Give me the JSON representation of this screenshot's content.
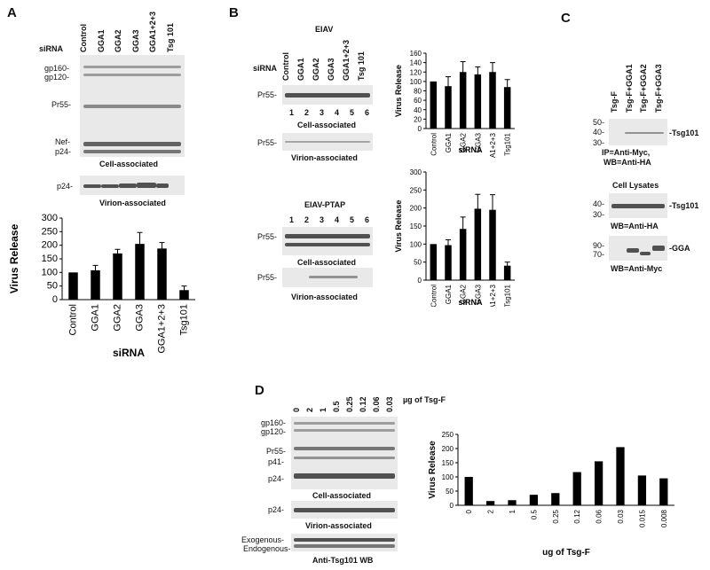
{
  "panels": {
    "A": {
      "label": "A",
      "sirna_label": "siRNA",
      "lanes": [
        "Control",
        "GGA1",
        "GGA2",
        "GGA3",
        "GGA1+2+3",
        "Tsg 101"
      ],
      "markers": [
        "gp160-",
        "gp120-",
        "Pr55-",
        "Nef-",
        "p24-"
      ],
      "virion_marker": "p24-",
      "cell_caption": "Cell-associated",
      "virion_caption": "Virion-associated"
    },
    "B": {
      "label": "B",
      "title_top": "EIAV",
      "title_bottom": "EIAV-PTAP",
      "sirna_label": "siRNA",
      "lanes": [
        "Control",
        "GGA1",
        "GGA2",
        "GGA3",
        "GGA1+2+3",
        "Tsg 101"
      ],
      "lane_numbers": [
        "1",
        "2",
        "3",
        "4",
        "5",
        "6"
      ],
      "marker": "Pr55-",
      "cell_caption": "Cell-associated",
      "virion_caption": "Virion-associated"
    },
    "C": {
      "label": "C",
      "lanes": [
        "Tsg-F",
        "Tsg-F+GGA1",
        "Tsg-F+GGA2",
        "Tsg-F+GGA3"
      ],
      "mw_ip": [
        "50-",
        "40-",
        "30-"
      ],
      "ip_band": "-Tsg101",
      "ip_caption_1": "IP=Anti-Myc,",
      "ip_caption_2": "WB=Anti-HA",
      "lysate_title": "Cell Lysates",
      "mw_lys1": [
        "40-",
        "30-"
      ],
      "lys1_band": "-Tsg101",
      "lys1_caption": "WB=Anti-HA",
      "mw_lys2": [
        "90-",
        "70-"
      ],
      "lys2_band": "-GGA",
      "lys2_caption": "WB=Anti-Myc"
    },
    "D": {
      "label": "D",
      "unit_label": "µg of Tsg-F",
      "lanes": [
        "0",
        "2",
        "1",
        "0.5",
        "0.25",
        "0.12",
        "0.06",
        "0.03"
      ],
      "markers": [
        "gp160-",
        "gp120-",
        "Pr55-",
        "p41-",
        "p24-"
      ],
      "virion_marker": "p24-",
      "cell_caption": "Cell-associated",
      "virion_caption": "Virion-associated",
      "wb_markers": [
        "Exogenous-",
        "Endogenous-"
      ],
      "wb_caption": "Anti-Tsg101 WB"
    }
  },
  "chart_data": [
    {
      "type": "bar",
      "panel": "A",
      "categories": [
        "Control",
        "GGA1",
        "GGA2",
        "GGA3",
        "GGA1+2+3",
        "Tsg101"
      ],
      "values": [
        100,
        108,
        170,
        205,
        188,
        35
      ],
      "errors": [
        0,
        18,
        15,
        42,
        22,
        15
      ],
      "ylabel": "Virus Release",
      "xlabel": "siRNA",
      "ylim": [
        0,
        300
      ],
      "yticks": [
        0,
        50,
        100,
        150,
        200,
        250,
        300
      ]
    },
    {
      "type": "bar",
      "panel": "B-EIAV",
      "categories": [
        "Control",
        "GGA1",
        "GGA2",
        "GGA3",
        "GGA1+2+3",
        "Tsg101"
      ],
      "values": [
        100,
        90,
        120,
        115,
        120,
        88
      ],
      "errors": [
        0,
        20,
        22,
        16,
        20,
        16
      ],
      "ylabel": "Virus Release",
      "xlabel": "siRNA",
      "ylim": [
        0,
        160
      ],
      "yticks": [
        0,
        20,
        40,
        60,
        80,
        100,
        120,
        140,
        160
      ]
    },
    {
      "type": "bar",
      "panel": "B-EIAV-PTAP",
      "categories": [
        "Control",
        "GGA1",
        "GGA2",
        "GGA3",
        "GGA1+2+3",
        "Tsg101"
      ],
      "values": [
        100,
        97,
        142,
        198,
        195,
        40
      ],
      "errors": [
        0,
        15,
        33,
        40,
        42,
        10
      ],
      "ylabel": "Virus Release",
      "xlabel": "siRNA",
      "ylim": [
        0,
        300
      ],
      "yticks": [
        0,
        50,
        100,
        150,
        200,
        250,
        300
      ]
    },
    {
      "type": "bar",
      "panel": "D",
      "categories": [
        "0",
        "2",
        "1",
        "0.5",
        "0.25",
        "0.12",
        "0.06",
        "0.03",
        "0.015",
        "0.008"
      ],
      "values": [
        100,
        15,
        18,
        37,
        43,
        117,
        155,
        205,
        105,
        95
      ],
      "ylabel": "Virus Release",
      "xlabel": "ug of Tsg-F",
      "ylim": [
        0,
        250
      ],
      "yticks": [
        0,
        50,
        100,
        150,
        200,
        250
      ]
    }
  ]
}
